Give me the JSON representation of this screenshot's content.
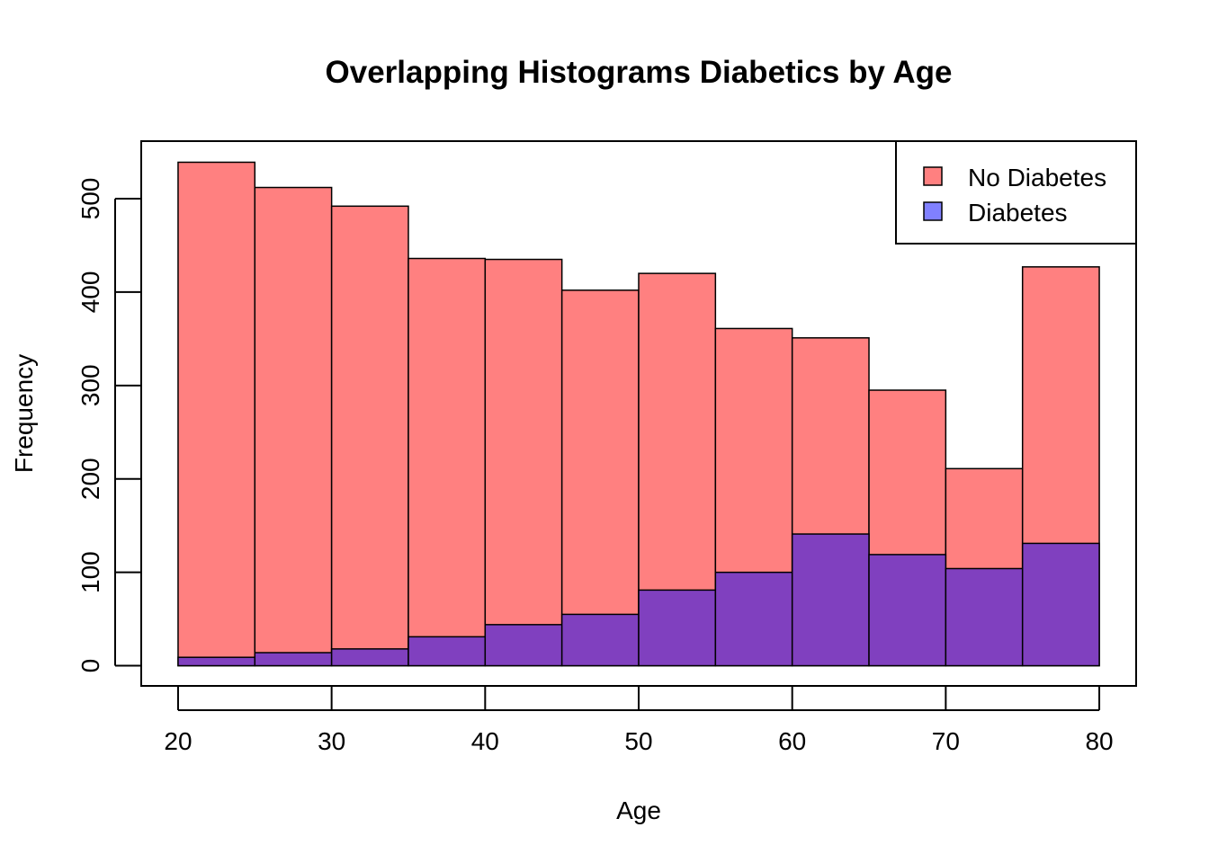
{
  "chart_data": {
    "type": "bar",
    "title": "Overlapping Histograms Diabetics by Age",
    "xlabel": "Age",
    "ylabel": "Frequency",
    "bin_edges": [
      20,
      25,
      30,
      35,
      40,
      45,
      50,
      55,
      60,
      65,
      70,
      75,
      80
    ],
    "series": [
      {
        "name": "No Diabetes",
        "color": "#FF8080",
        "values": [
          539,
          512,
          492,
          436,
          435,
          402,
          420,
          361,
          351,
          295,
          211,
          427
        ]
      },
      {
        "name": "Diabetes",
        "color": "#8080FF",
        "values": [
          9,
          14,
          18,
          31,
          44,
          55,
          81,
          100,
          141,
          119,
          104,
          131
        ]
      }
    ],
    "overlap_color": "#8040BF",
    "xlim": [
      17.6,
      82.4
    ],
    "ylim": [
      -21.6,
      561.6
    ],
    "x_ticks": [
      20,
      30,
      40,
      50,
      60,
      70,
      80
    ],
    "y_ticks": [
      0,
      100,
      200,
      300,
      400,
      500
    ],
    "grid": false,
    "legend_position": "top-right"
  }
}
